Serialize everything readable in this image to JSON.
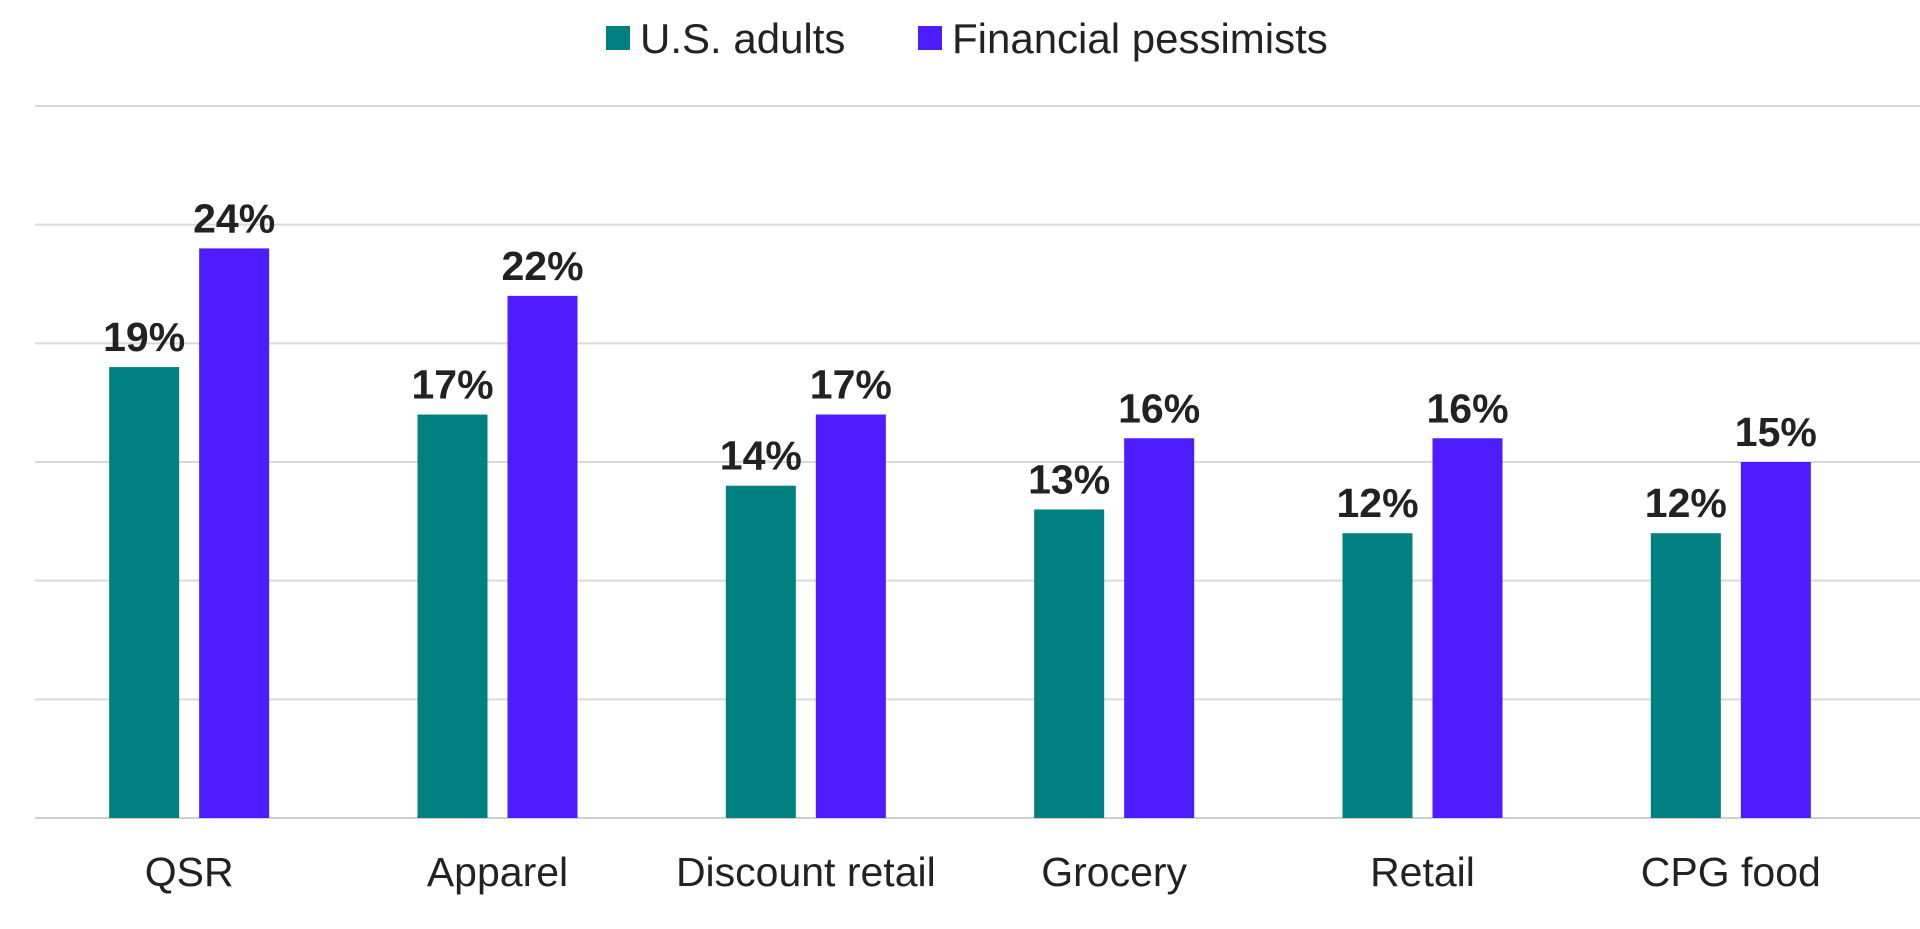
{
  "chart_data": {
    "type": "bar",
    "categories": [
      "QSR",
      "Apparel",
      "Discount retail",
      "Grocery",
      "Retail",
      "CPG food"
    ],
    "series": [
      {
        "name": "U.S. adults",
        "color": "#008080",
        "values": [
          19,
          17,
          14,
          13,
          12,
          12
        ],
        "labels": [
          "19%",
          "17%",
          "14%",
          "13%",
          "12%",
          "12%"
        ]
      },
      {
        "name": "Financial pessimists",
        "color": "#4F1BFF",
        "values": [
          24,
          22,
          17,
          16,
          16,
          15
        ],
        "labels": [
          "24%",
          "22%",
          "17%",
          "16%",
          "16%",
          "15%"
        ]
      }
    ],
    "ylim": [
      0,
      30
    ],
    "gridlines": [
      0,
      5,
      10,
      15,
      20,
      25,
      30
    ],
    "grid": true,
    "legend_position": "top-center",
    "title": "",
    "xlabel": "",
    "ylabel": ""
  }
}
